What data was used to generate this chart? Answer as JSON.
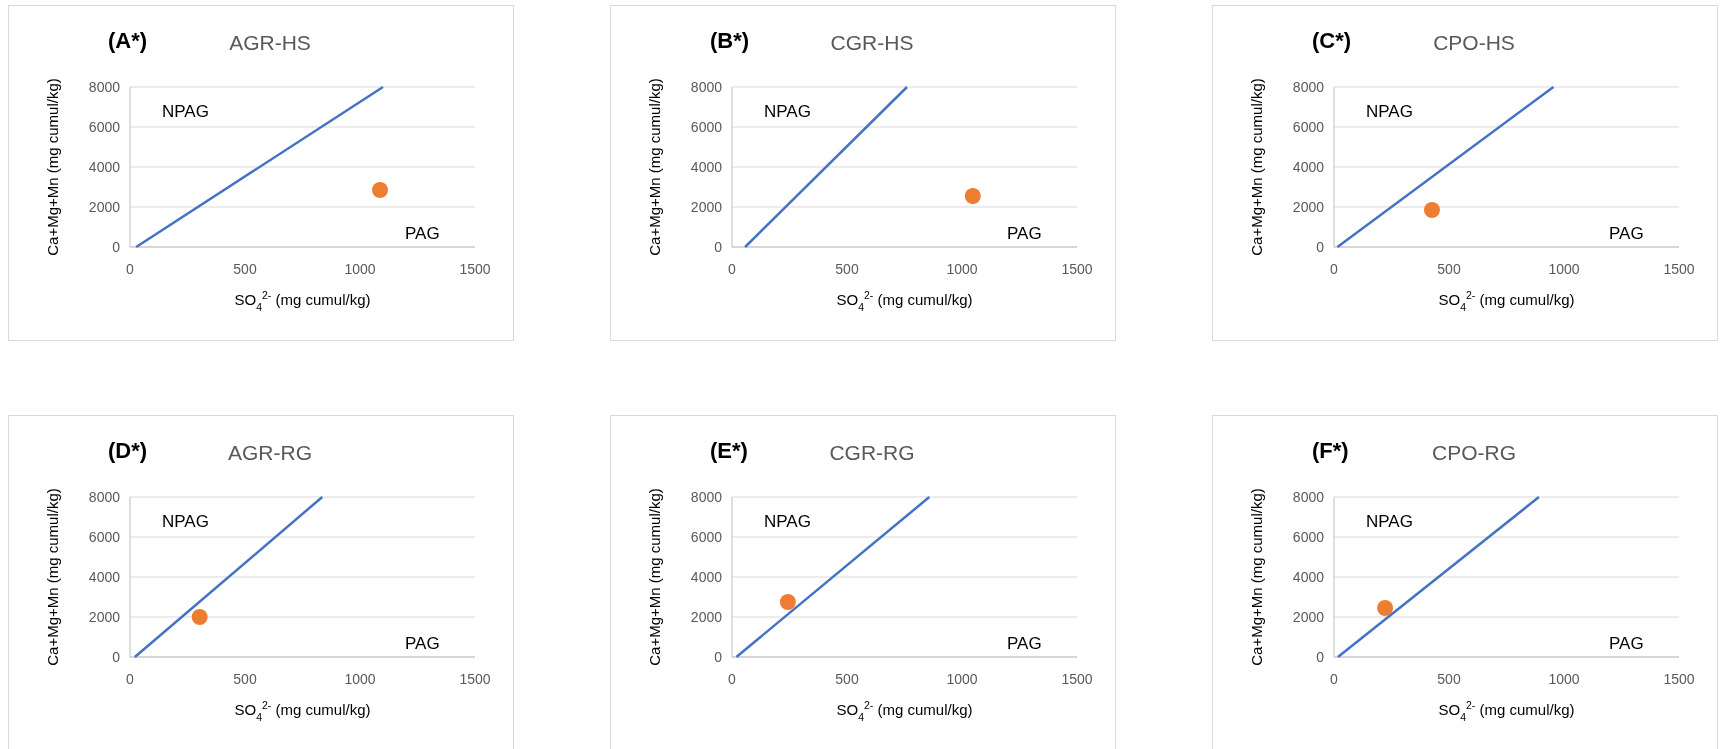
{
  "chart_data": [
    {
      "type": "scatter",
      "title": "(A*)",
      "subtitle": "AGR-HS",
      "xlabel": "SO$_{4}$$^{2-}$ (mg cumul/kg)",
      "ylabel": "Ca+Mg+Mn (mg cumul/kg)",
      "xlim": [
        0,
        1500
      ],
      "xticks": [
        0,
        500,
        1000,
        1500
      ],
      "ylim": [
        0,
        8000
      ],
      "yticks": [
        0,
        2000,
        4000,
        6000,
        8000
      ],
      "grid": "y",
      "annotations": [
        "NPAG",
        "PAG"
      ],
      "series": [
        {
          "type": "line",
          "color": "#4472c4",
          "x": [
            27,
            1100
          ],
          "values": [
            0,
            8000
          ],
          "marker": "none"
        },
        {
          "color": "#ed7d31",
          "x": [
            1087
          ],
          "values": [
            2850
          ],
          "marker": "circle"
        }
      ]
    },
    {
      "type": "scatter",
      "title": "(B*)",
      "subtitle": "CGR-HS",
      "xlabel": "SO$_{4}$$^{2-}$ (mg cumul/kg)",
      "ylabel": "Ca+Mg+Mn (mg cumul/kg)",
      "xlim": [
        0,
        1500
      ],
      "xticks": [
        0,
        500,
        1000,
        1500
      ],
      "ylim": [
        0,
        8000
      ],
      "yticks": [
        0,
        2000,
        4000,
        6000,
        8000
      ],
      "grid": "y",
      "annotations": [
        "NPAG",
        "PAG"
      ],
      "series": [
        {
          "type": "line",
          "color": "#4472c4",
          "x": [
            57,
            761
          ],
          "values": [
            0,
            8000
          ],
          "marker": "none"
        },
        {
          "color": "#ed7d31",
          "x": [
            1047
          ],
          "values": [
            2550
          ],
          "marker": "circle"
        }
      ]
    },
    {
      "type": "scatter",
      "title": "(C*)",
      "subtitle": "CPO-HS",
      "xlabel": "SO$_{4}$$^{2-}$ (mg cumul/kg)",
      "ylabel": "Ca+Mg+Mn (mg cumul/kg)",
      "xlim": [
        0,
        1500
      ],
      "xticks": [
        0,
        500,
        1000,
        1500
      ],
      "ylim": [
        0,
        8000
      ],
      "yticks": [
        0,
        2000,
        4000,
        6000,
        8000
      ],
      "grid": "y",
      "annotations": [
        "NPAG",
        "PAG"
      ],
      "series": [
        {
          "type": "line",
          "color": "#4472c4",
          "x": [
            15,
            954
          ],
          "values": [
            0,
            8000
          ],
          "marker": "none"
        },
        {
          "color": "#ed7d31",
          "x": [
            426
          ],
          "values": [
            1850
          ],
          "marker": "circle"
        }
      ]
    },
    {
      "type": "scatter",
      "title": "(D*)",
      "subtitle": "AGR-RG",
      "xlabel": "SO$_{4}$$^{2-}$ (mg cumul/kg)",
      "ylabel": "Ca+Mg+Mn (mg cumul/kg)",
      "xlim": [
        0,
        1500
      ],
      "xticks": [
        0,
        500,
        1000,
        1500
      ],
      "ylim": [
        0,
        8000
      ],
      "yticks": [
        0,
        2000,
        4000,
        6000,
        8000
      ],
      "grid": "y",
      "annotations": [
        "NPAG",
        "PAG"
      ],
      "series": [
        {
          "type": "line",
          "color": "#4472c4",
          "x": [
            21,
            836
          ],
          "values": [
            0,
            8000
          ],
          "marker": "none"
        },
        {
          "color": "#ed7d31",
          "x": [
            303
          ],
          "values": [
            2000
          ],
          "marker": "circle"
        }
      ]
    },
    {
      "type": "scatter",
      "title": "(E*)",
      "subtitle": "CGR-RG",
      "xlabel": "SO$_{4}$$^{2-}$ (mg cumul/kg)",
      "ylabel": "Ca+Mg+Mn (mg cumul/kg)",
      "xlim": [
        0,
        1500
      ],
      "xticks": [
        0,
        500,
        1000,
        1500
      ],
      "ylim": [
        0,
        8000
      ],
      "yticks": [
        0,
        2000,
        4000,
        6000,
        8000
      ],
      "grid": "y",
      "annotations": [
        "NPAG",
        "PAG"
      ],
      "series": [
        {
          "type": "line",
          "color": "#4472c4",
          "x": [
            19,
            858
          ],
          "values": [
            0,
            8000
          ],
          "marker": "none"
        },
        {
          "color": "#ed7d31",
          "x": [
            243
          ],
          "values": [
            2750
          ],
          "marker": "circle"
        }
      ]
    },
    {
      "type": "scatter",
      "title": "(F*)",
      "subtitle": "CPO-RG",
      "xlabel": "SO$_{4}$$^{2-}$ (mg cumul/kg)",
      "ylabel": "Ca+Mg+Mn (mg cumul/kg)",
      "xlim": [
        0,
        1500
      ],
      "xticks": [
        0,
        500,
        1000,
        1500
      ],
      "ylim": [
        0,
        8000
      ],
      "yticks": [
        0,
        2000,
        4000,
        6000,
        8000
      ],
      "grid": "y",
      "annotations": [
        "NPAG",
        "PAG"
      ],
      "series": [
        {
          "type": "line",
          "color": "#4472c4",
          "x": [
            17,
            891
          ],
          "values": [
            0,
            8000
          ],
          "marker": "none"
        },
        {
          "color": "#ed7d31",
          "x": [
            222
          ],
          "values": [
            2450
          ],
          "marker": "circle"
        }
      ]
    }
  ]
}
